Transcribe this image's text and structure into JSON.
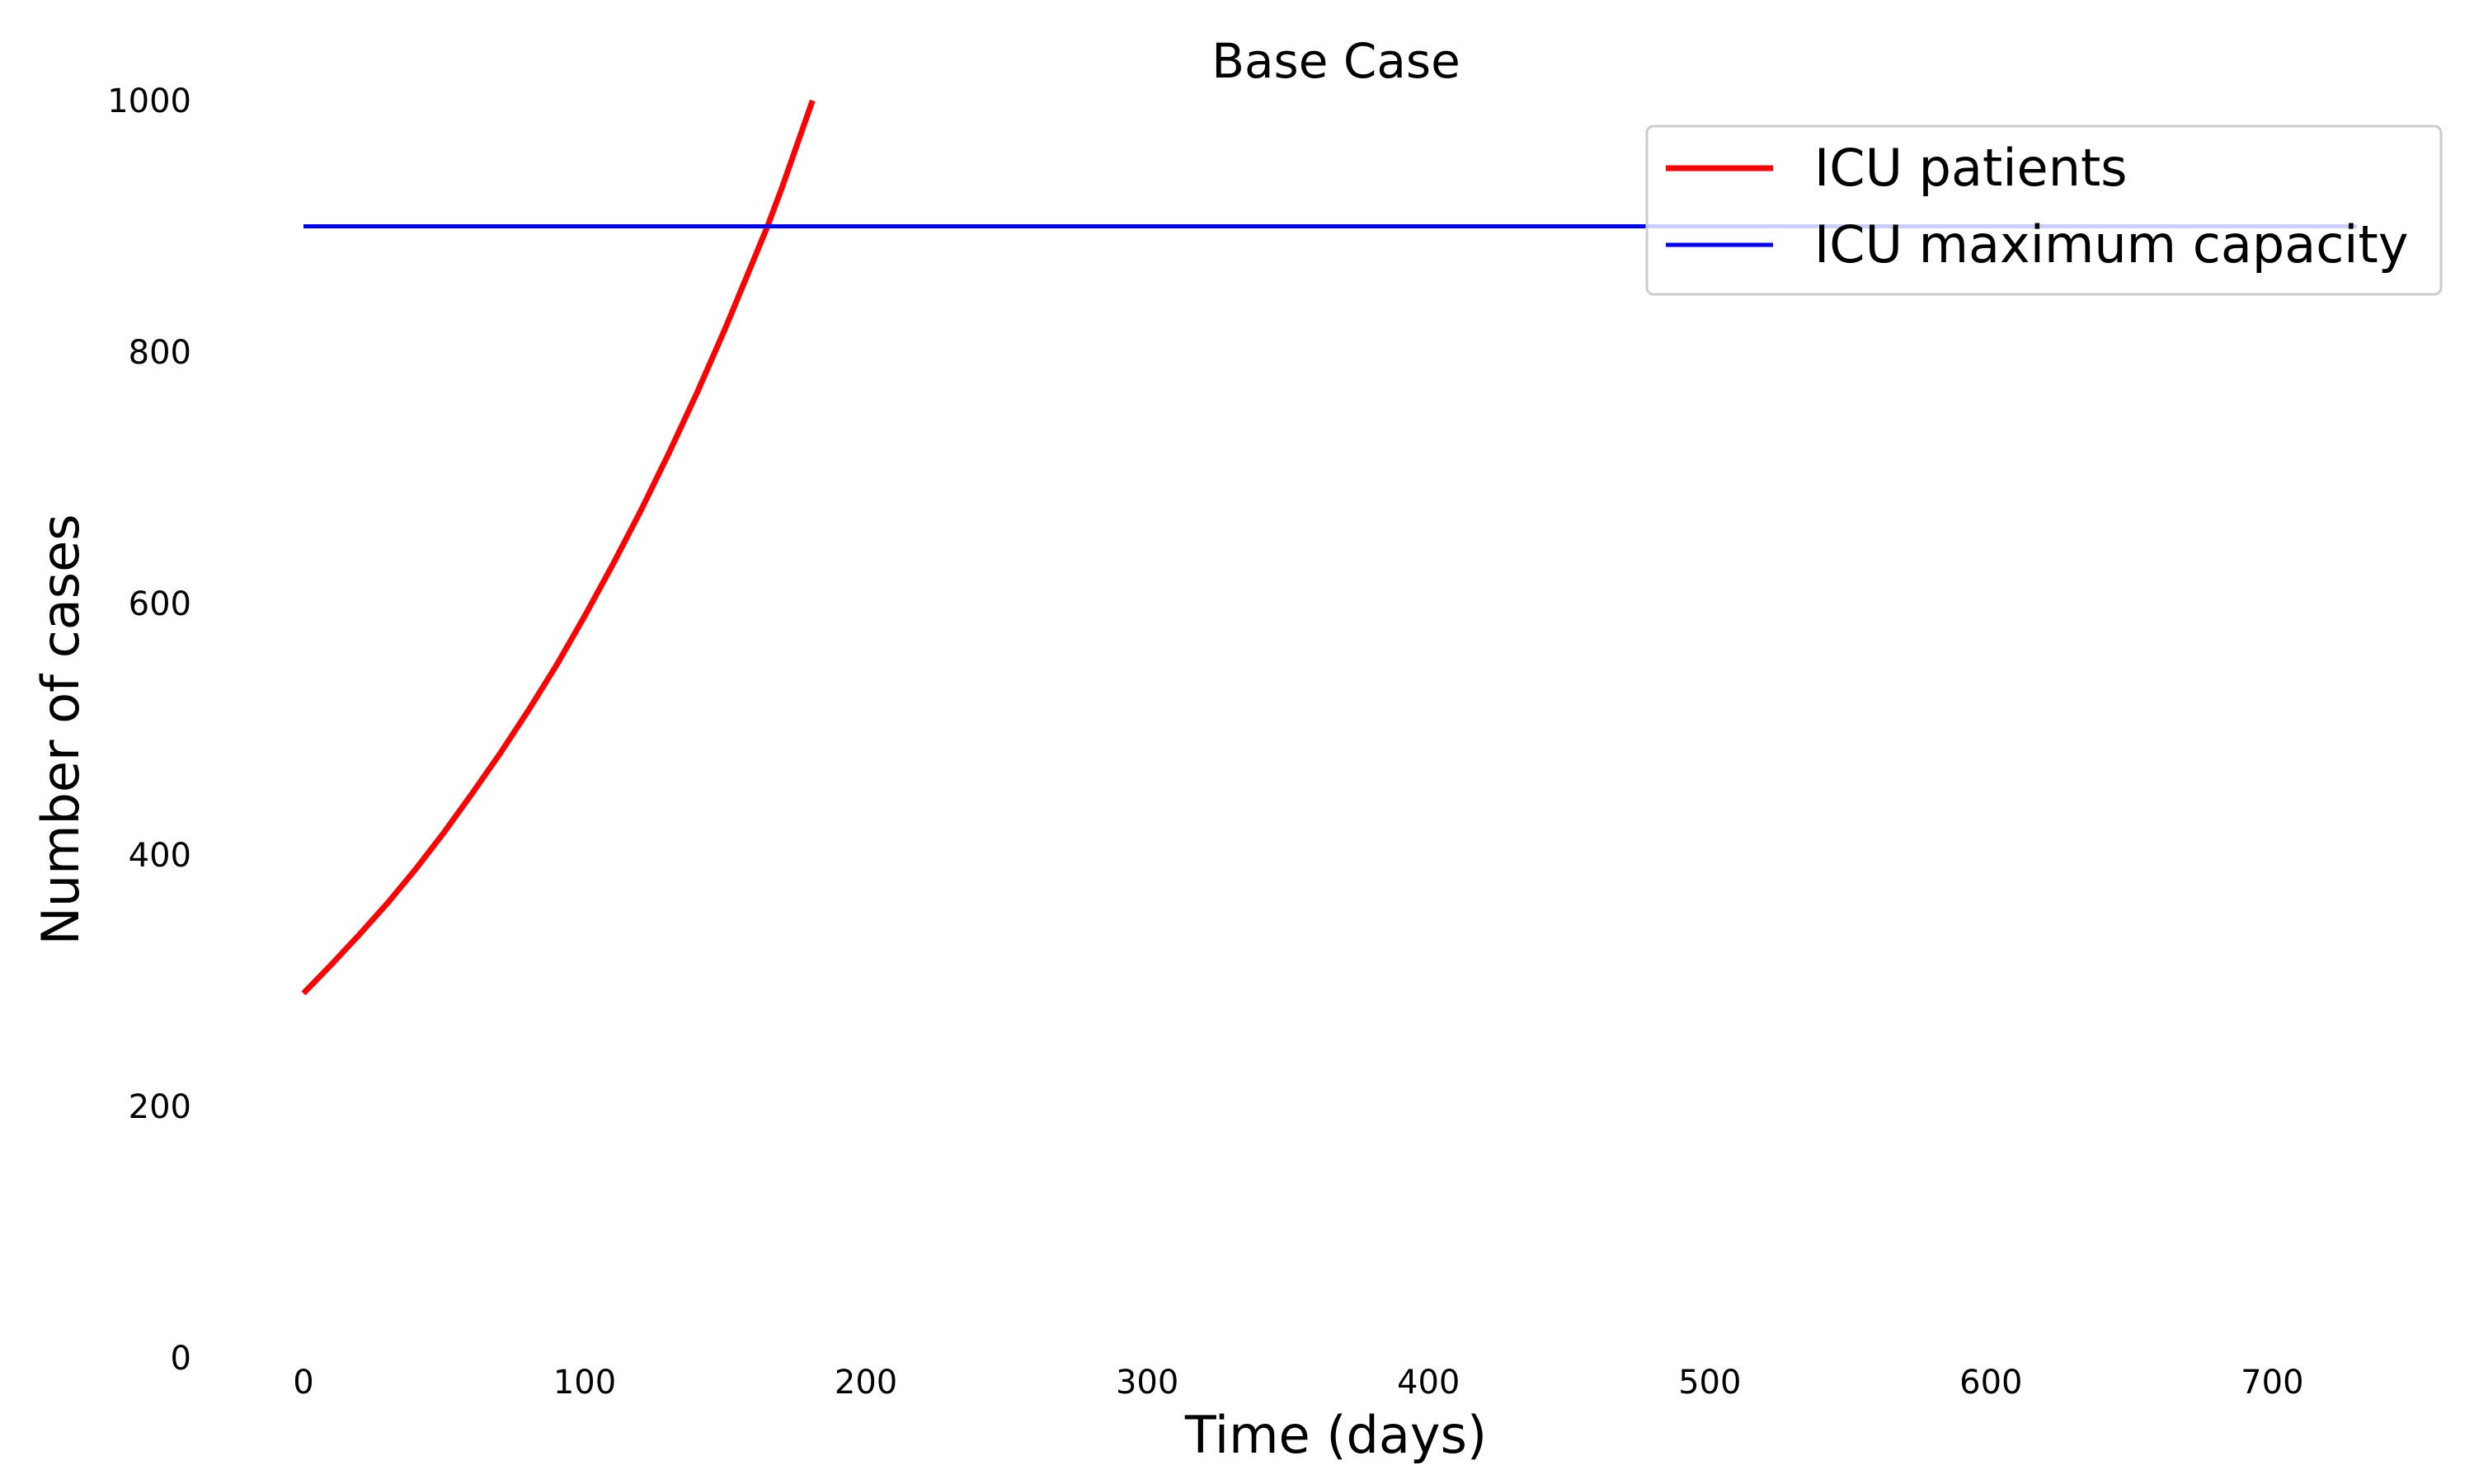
{
  "chart_data": {
    "type": "line",
    "title": "Base Case",
    "xlabel": "Time (days)",
    "ylabel": "Number of cases",
    "xlim": [
      -17,
      760
    ],
    "ylim": [
      0,
      1000
    ],
    "x_ticks": [
      "0",
      "100",
      "200",
      "300",
      "400",
      "500",
      "600",
      "700"
    ],
    "y_ticks": [
      "0",
      "200",
      "400",
      "600",
      "800",
      "1000"
    ],
    "grid": false,
    "legend_position": "top-right",
    "series": [
      {
        "name": "ICU patients",
        "color": "#ff0000",
        "x": [
          0,
          10,
          20,
          30,
          40,
          50,
          60,
          70,
          80,
          90,
          100,
          110,
          120,
          130,
          140,
          150,
          160,
          165,
          170,
          181
        ],
        "y": [
          290,
          313,
          337,
          362,
          389,
          418,
          449,
          481,
          515,
          551,
          590,
          631,
          674,
          720,
          768,
          819,
          873,
          900,
          930,
          1000
        ]
      },
      {
        "name": "ICU maximum capacity",
        "color": "#0000ff",
        "x": [
          0,
          730
        ],
        "y": [
          900,
          900
        ]
      }
    ]
  }
}
